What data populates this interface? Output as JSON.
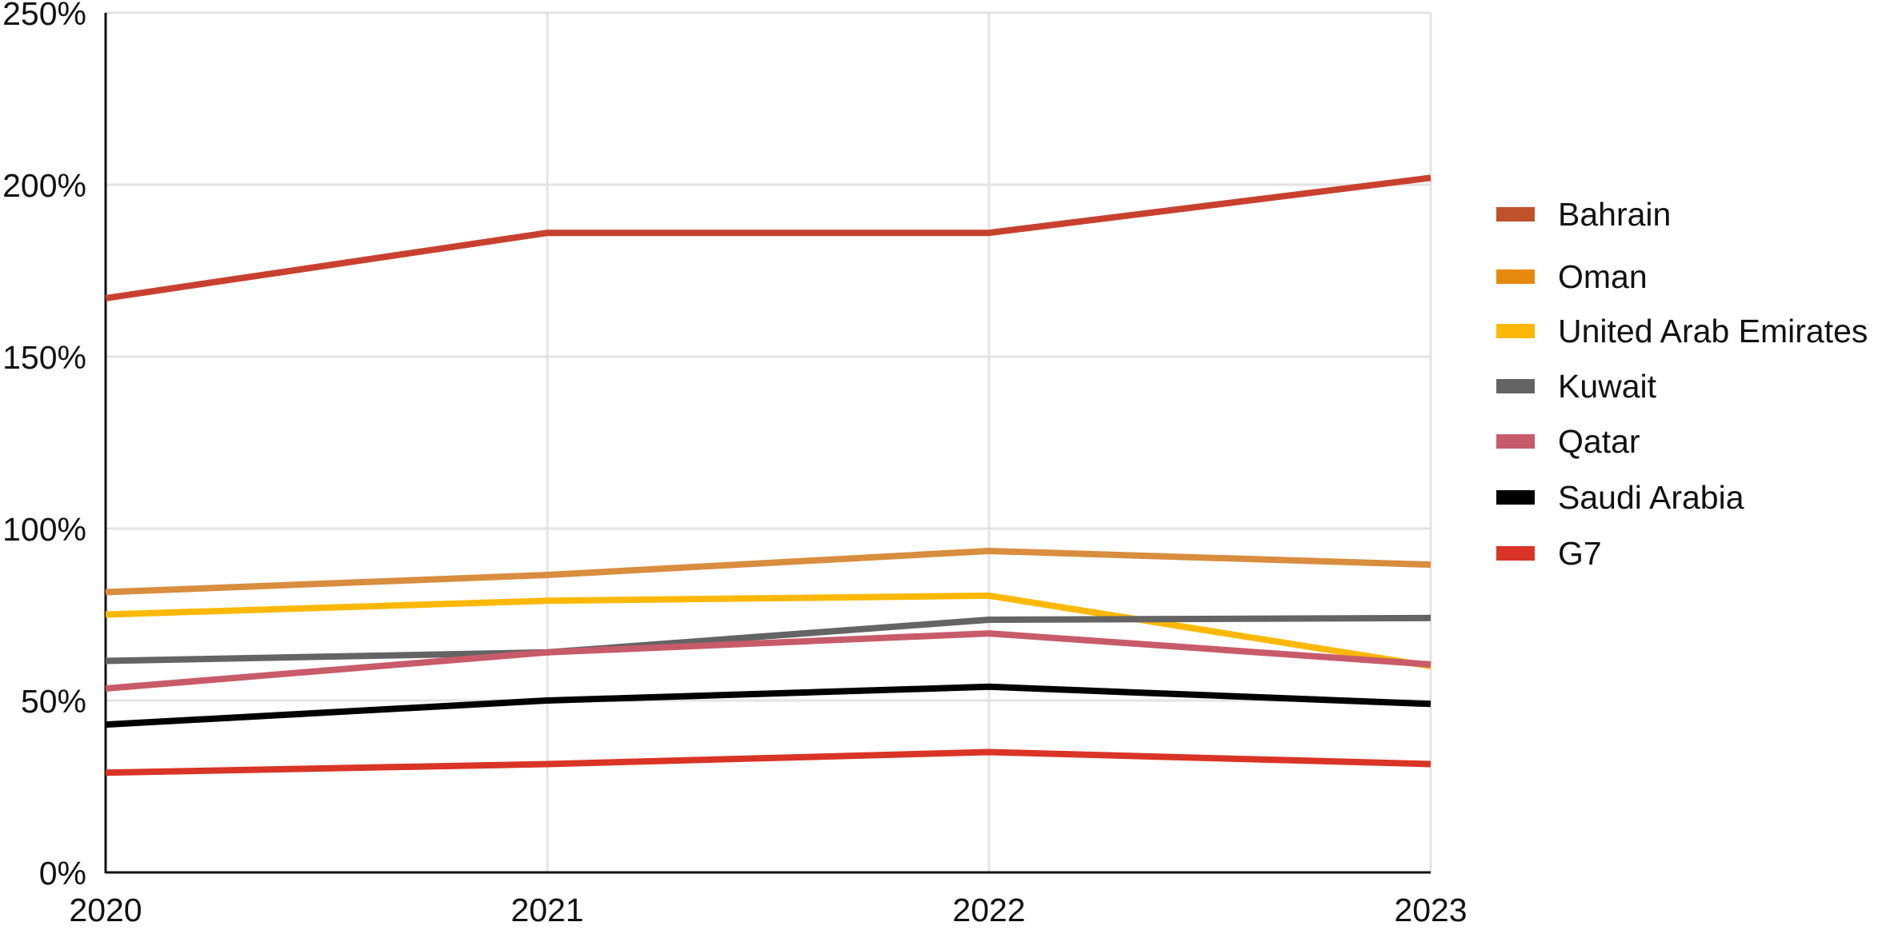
{
  "chart_data": {
    "type": "line",
    "title": "",
    "xlabel": "",
    "ylabel": "",
    "x": [
      "2020",
      "2021",
      "2022",
      "2023"
    ],
    "ylim": [
      0,
      250
    ],
    "y_ticks": [
      0,
      50,
      100,
      150,
      200,
      250
    ],
    "y_tick_labels": [
      "0%",
      "50%",
      "100%",
      "150%",
      "200%",
      "250%"
    ],
    "y_unit": "%",
    "grid": true,
    "legend_position": "right",
    "series": [
      {
        "name": "Bahrain",
        "color": "#c8412e",
        "legend_color": "#c0522b",
        "values": [
          167,
          186,
          186,
          202
        ]
      },
      {
        "name": "Oman",
        "color": "#d98d3f",
        "legend_color": "#e8890f",
        "values": [
          81.5,
          86.5,
          93.5,
          89.5
        ]
      },
      {
        "name": "United Arab Emirates",
        "color": "#fbb806",
        "legend_color": "#fbb806",
        "values": [
          75,
          79,
          80.5,
          60
        ]
      },
      {
        "name": "Kuwait",
        "color": "#646464",
        "legend_color": "#646464",
        "values": [
          61.5,
          64,
          73.5,
          74
        ]
      },
      {
        "name": "Qatar",
        "color": "#c85b6a",
        "legend_color": "#c85b6a",
        "values": [
          53.5,
          64,
          69.5,
          60.5
        ]
      },
      {
        "name": "Saudi Arabia",
        "color": "#000000",
        "legend_color": "#000000",
        "values": [
          43,
          50,
          54,
          49
        ]
      },
      {
        "name": "G7",
        "color": "#d93425",
        "legend_color": "#d93425",
        "values": [
          29,
          31.5,
          35,
          31.5
        ]
      }
    ]
  }
}
